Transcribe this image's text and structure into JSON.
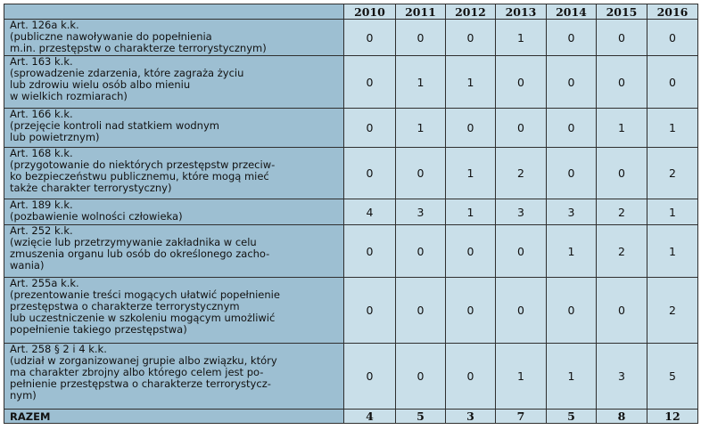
{
  "table": {
    "years": [
      "2010",
      "2011",
      "2012",
      "2013",
      "2014",
      "2015",
      "2016"
    ],
    "rows": [
      {
        "label": "Art. 126a k.k.\n(publiczne nawoływanie do popełnienia\nm.in. przestępstw o charakterze terrorystycznym)",
        "values": [
          "0",
          "0",
          "0",
          "1",
          "0",
          "0",
          "0"
        ]
      },
      {
        "label": "Art. 163 k.k.\n(sprowadzenie zdarzenia, które zagraża życiu\nlub zdrowiu wielu osób albo mieniu\nw wielkich rozmiarach)",
        "values": [
          "0",
          "1",
          "1",
          "0",
          "0",
          "0",
          "0"
        ]
      },
      {
        "label": "Art. 166 k.k.\n(przejęcie kontroli nad statkiem wodnym\nlub powietrznym)",
        "values": [
          "0",
          "1",
          "0",
          "0",
          "0",
          "1",
          "1"
        ]
      },
      {
        "label": "Art. 168 k.k.\n(przygotowanie do niektórych przestępstw przeciw-\nko bezpieczeństwu publicznemu, które mogą mieć\ntakże charakter terrorystyczny)",
        "values": [
          "0",
          "0",
          "1",
          "2",
          "0",
          "0",
          "2"
        ]
      },
      {
        "label": "Art. 189 k.k.\n(pozbawienie wolności człowieka)",
        "values": [
          "4",
          "3",
          "1",
          "3",
          "3",
          "2",
          "1"
        ]
      },
      {
        "label": "Art. 252 k.k.\n(wzięcie lub przetrzymywanie zakładnika w celu\nzmuszenia organu lub osób do określonego zacho-\nwania)",
        "values": [
          "0",
          "0",
          "0",
          "0",
          "1",
          "2",
          "1"
        ]
      },
      {
        "label": "Art. 255a k.k.\n(prezentowanie treści mogących ułatwić popełnienie\nprzestępstwa o charakterze terrorystycznym\nlub uczestniczenie w szkoleniu mogącym umożliwić\npopełnienie takiego przestępstwa)",
        "values": [
          "0",
          "0",
          "0",
          "0",
          "0",
          "0",
          "2"
        ]
      },
      {
        "label": "Art. 258 § 2 i 4 k.k.\n(udział w zorganizowanej grupie albo związku, który\nma charakter zbrojny albo którego celem jest po-\npełnienie przestępstwa o charakterze terrorystycz-\nnym)",
        "values": [
          "0",
          "0",
          "0",
          "1",
          "1",
          "3",
          "5"
        ]
      }
    ],
    "total": {
      "label": "RAZEM",
      "values": [
        "4",
        "5",
        "3",
        "7",
        "5",
        "8",
        "12"
      ]
    }
  }
}
